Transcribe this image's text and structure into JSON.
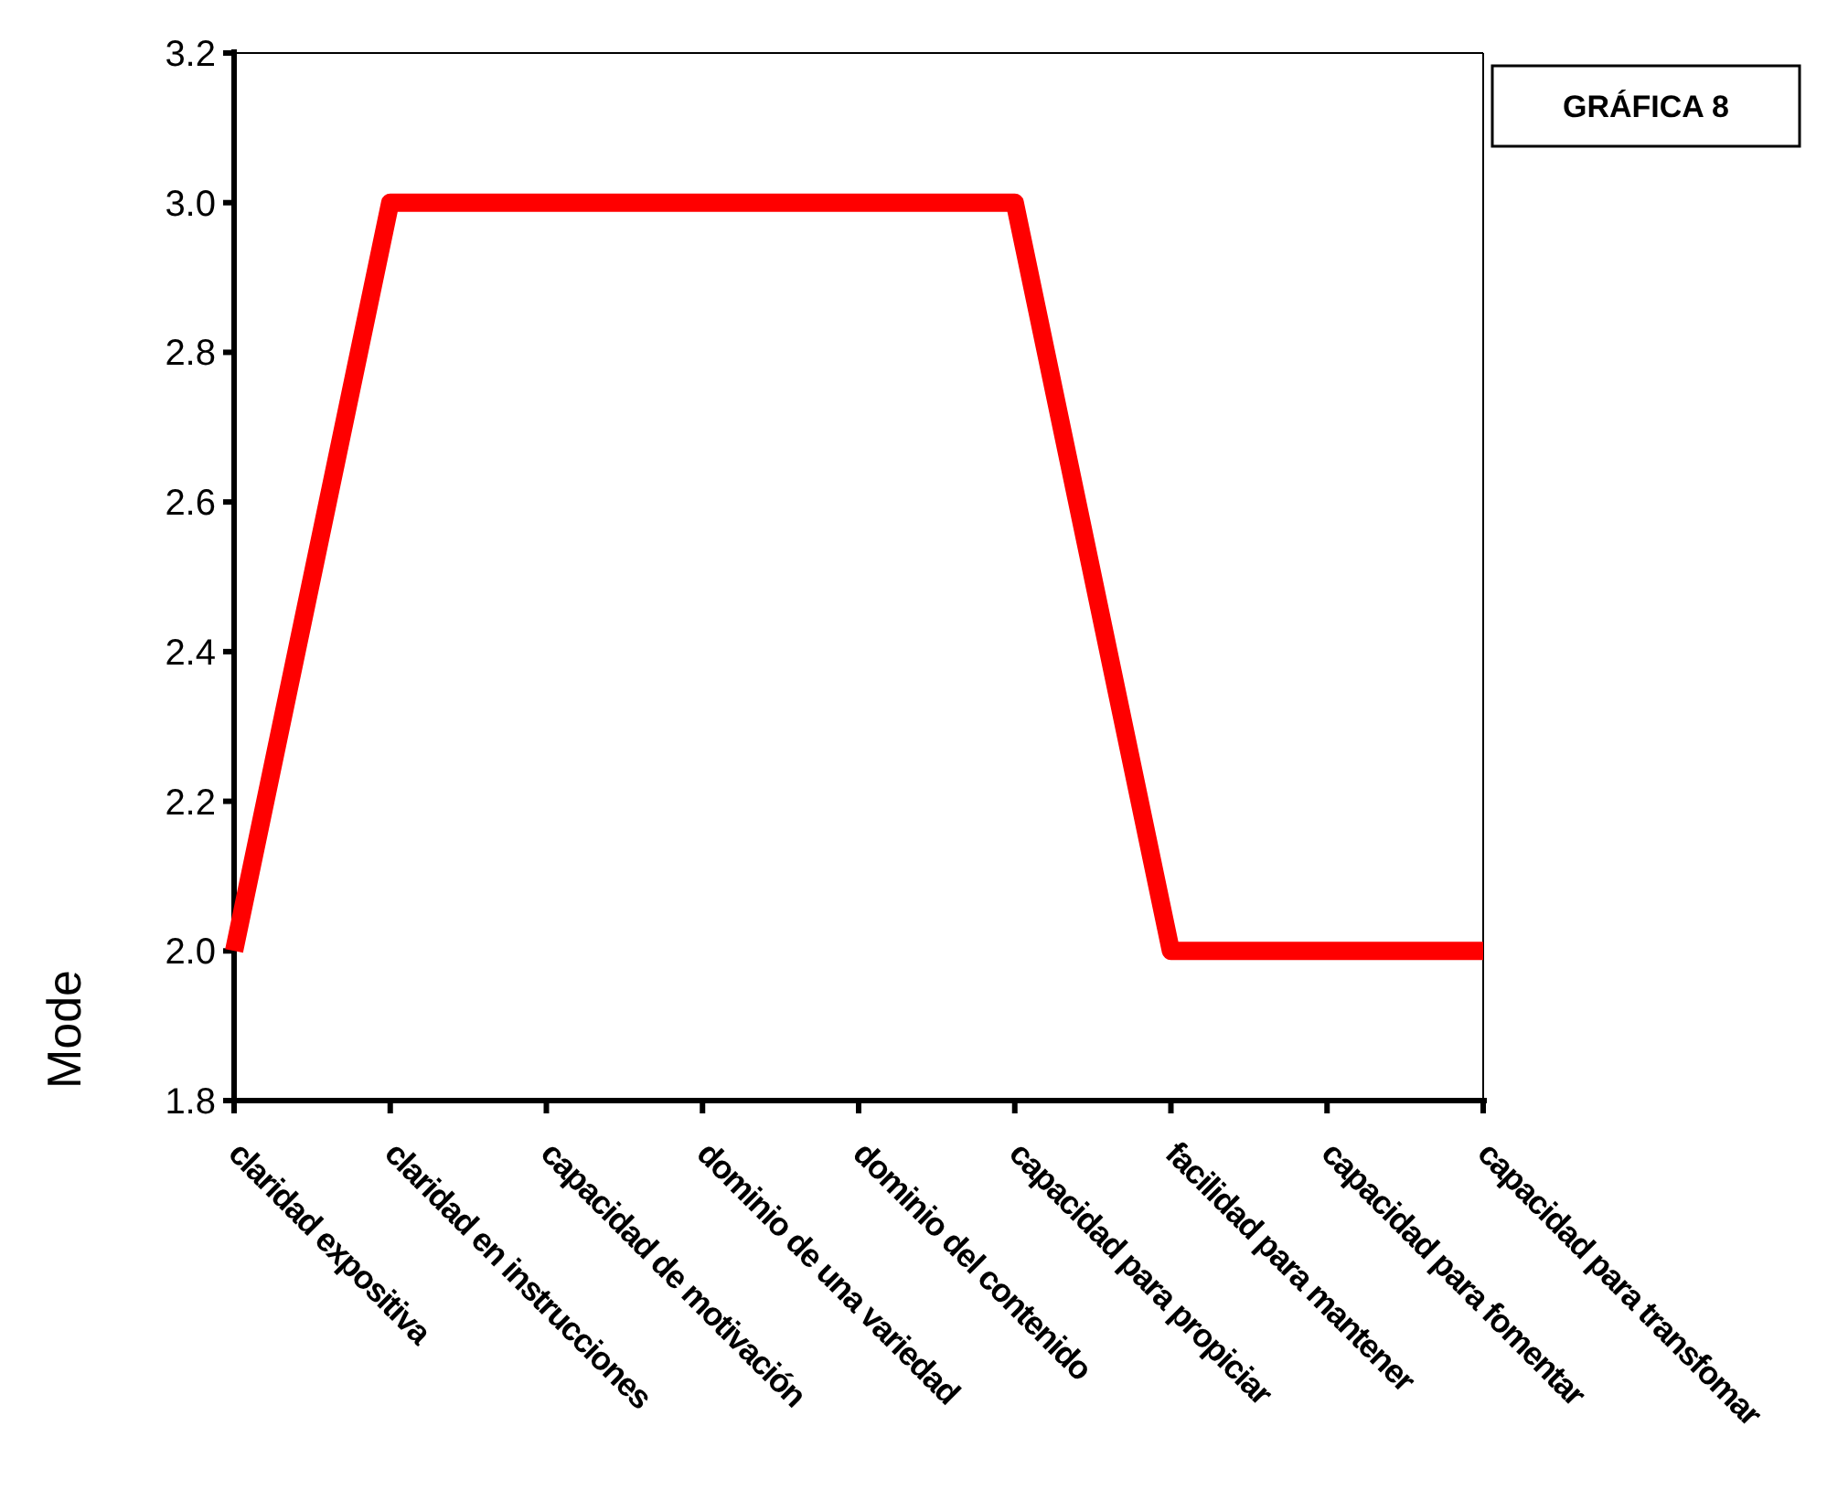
{
  "chart_data": {
    "type": "line",
    "title": "GRÁFICA 8",
    "ylabel": "Mode",
    "categories": [
      "claridad expositiva",
      "claridad en instrucciones",
      "capacidad de motivación",
      "dominio de una variedad",
      "dominio del contenido",
      "capacidad para propiciar",
      "facilidad para mantener",
      "capacidad para fomentar",
      "capacidad para transfomar"
    ],
    "series": [
      {
        "color": "#ff0000",
        "values": [
          2,
          3,
          3,
          3,
          3,
          3,
          2,
          2,
          2
        ]
      }
    ],
    "ylim": [
      1.8,
      3.2
    ],
    "yticks": [
      1.8,
      {
        "value": 2,
        "label": "2.0"
      },
      2.2,
      2.4,
      2.6,
      2.8,
      {
        "value": 3,
        "label": "3.0"
      },
      3.2
    ],
    "grid": false,
    "marker": "none",
    "line_style": "solid"
  }
}
